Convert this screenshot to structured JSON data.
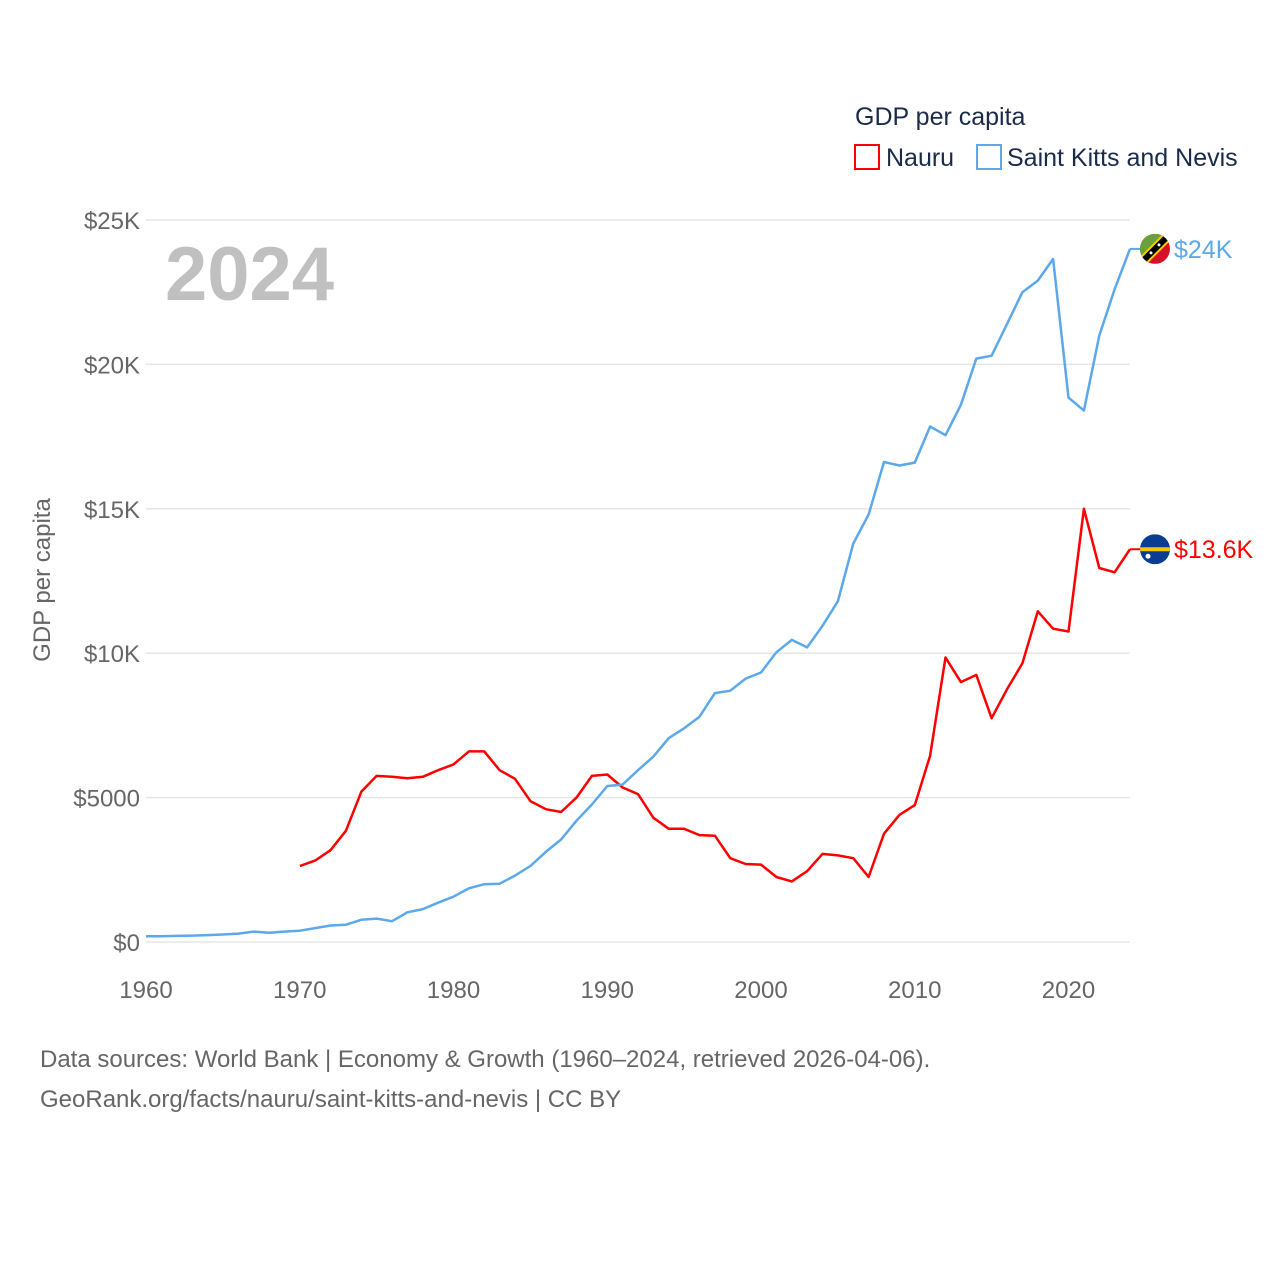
{
  "chart_data": {
    "type": "line",
    "year_label": "2024",
    "ylabel": "GDP per capita",
    "xlabel": "",
    "legend_title": "GDP per capita",
    "legend_position": "top-right",
    "xlim": [
      1960,
      2024
    ],
    "ylim": [
      0,
      25000
    ],
    "x_ticks": [
      "1960",
      "1970",
      "1980",
      "1990",
      "2000",
      "2010",
      "2020"
    ],
    "x_tick_values": [
      1960,
      1970,
      1980,
      1990,
      2000,
      2010,
      2020
    ],
    "y_ticks": [
      "$0",
      "$5000",
      "$10K",
      "$15K",
      "$20K",
      "$25K"
    ],
    "y_tick_values": [
      0,
      5000,
      10000,
      15000,
      20000,
      25000
    ],
    "grid": true,
    "series": [
      {
        "name": "Nauru",
        "color": "#ff0000",
        "end_label": "$13.6K",
        "flag": "nauru-flag",
        "start_year": 1970,
        "values": [
          2630,
          2820,
          3180,
          3850,
          5200,
          5750,
          5720,
          5670,
          5720,
          5950,
          6150,
          6600,
          6600,
          5950,
          5650,
          4880,
          4600,
          4500,
          5000,
          5750,
          5800,
          5350,
          5120,
          4300,
          3920,
          3920,
          3700,
          3680,
          2900,
          2700,
          2680,
          2250,
          2100,
          2450,
          3050,
          3000,
          2900,
          2250,
          3750,
          4400,
          4740,
          6450,
          9850,
          9000,
          9250,
          7750,
          8750,
          9650,
          11450,
          10850,
          10750,
          15000,
          12950,
          12800,
          13600
        ]
      },
      {
        "name": "Saint Kitts and Nevis",
        "color": "#5ba8ea",
        "end_label": "$24K",
        "flag": "saint-kitts-and-nevis-flag",
        "start_year": 1960,
        "values": [
          200,
          200,
          210,
          220,
          240,
          260,
          290,
          360,
          320,
          360,
          390,
          480,
          570,
          600,
          770,
          810,
          720,
          1030,
          1140,
          1360,
          1570,
          1860,
          2000,
          2020,
          2300,
          2630,
          3120,
          3550,
          4200,
          4760,
          5400,
          5450,
          5950,
          6420,
          7060,
          7400,
          7800,
          8620,
          8700,
          9120,
          9330,
          10030,
          10460,
          10200,
          10950,
          11800,
          13800,
          14800,
          16620,
          16500,
          16600,
          17850,
          17550,
          18600,
          20200,
          20300,
          21400,
          22500,
          22900,
          23650,
          18850,
          18400,
          21000,
          22600,
          24000
        ]
      }
    ]
  },
  "footer": {
    "line1": "Data sources: World Bank | Economy & Growth (1960–2024, retrieved 2026-04-06).",
    "line2": "GeoRank.org/facts/nauru/saint-kitts-and-nevis | CC BY"
  }
}
